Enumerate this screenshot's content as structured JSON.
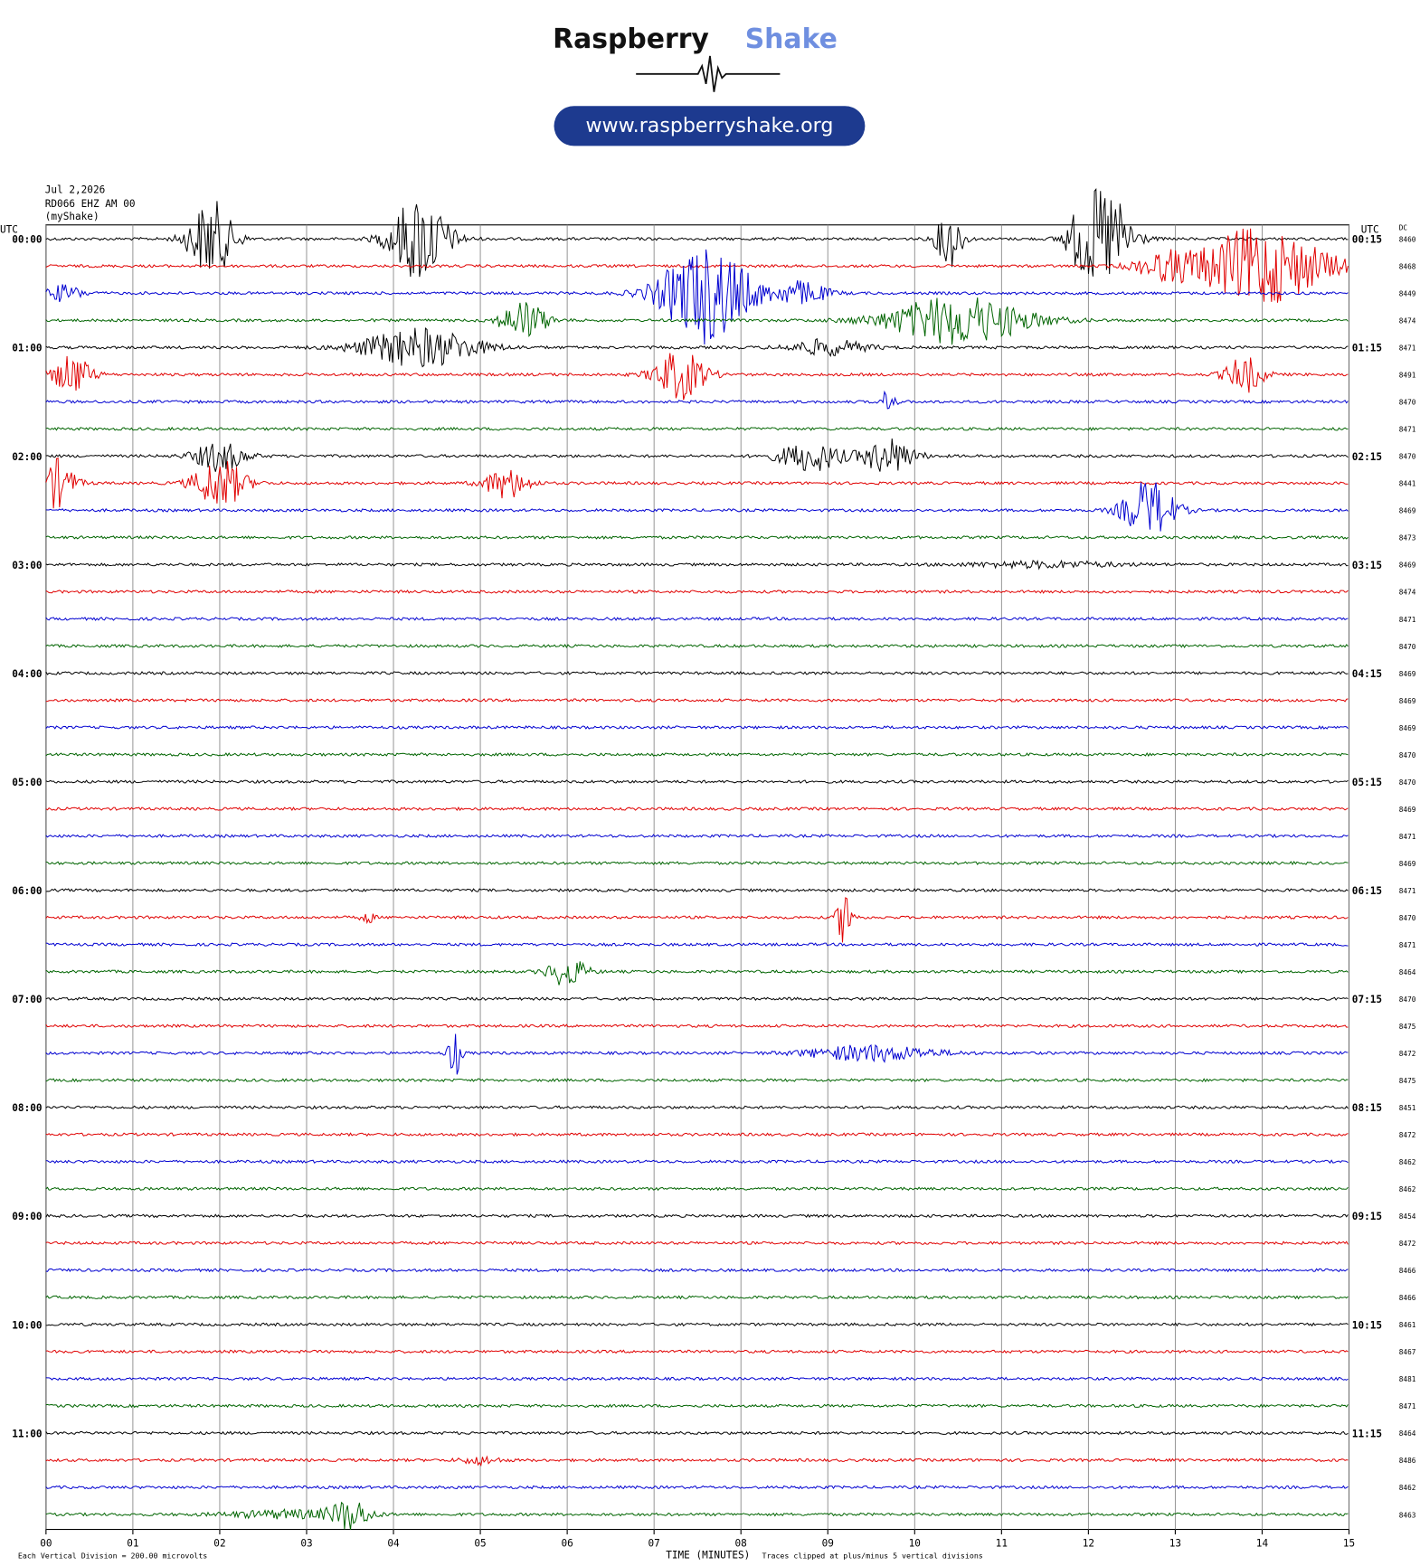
{
  "header": {
    "logo_word1": "Raspberry",
    "logo_word2": "Shake",
    "url": "www.raspberryshake.org",
    "date": "Jul 2,2026",
    "station": "RD066 EHZ AM 00",
    "source": "(myShake)"
  },
  "helicorder": {
    "utc_left": "UTC",
    "utc_right": "UTC",
    "dc_label": "DC",
    "colors": [
      "#000000",
      "#e00000",
      "#0000d0",
      "#006400"
    ],
    "hour_labels": [
      {
        "left": "00:00",
        "right": "00:15"
      },
      {
        "left": "01:00",
        "right": "01:15"
      },
      {
        "left": "02:00",
        "right": "02:15"
      },
      {
        "left": "03:00",
        "right": "03:15"
      },
      {
        "left": "04:00",
        "right": "04:15"
      },
      {
        "left": "05:00",
        "right": "05:15"
      },
      {
        "left": "06:00",
        "right": "06:15"
      },
      {
        "left": "07:00",
        "right": "07:15"
      },
      {
        "left": "08:00",
        "right": "08:15"
      },
      {
        "left": "09:00",
        "right": "09:15"
      },
      {
        "left": "10:00",
        "right": "10:15"
      },
      {
        "left": "11:00",
        "right": "11:15"
      }
    ],
    "dc": [
      8460,
      8468,
      8449,
      8474,
      8471,
      8491,
      8470,
      8471,
      8470,
      8441,
      8469,
      8473,
      8469,
      8474,
      8471,
      8470,
      8469,
      8469,
      8469,
      8470,
      8470,
      8469,
      8471,
      8469,
      8471,
      8470,
      8471,
      8464,
      8470,
      8475,
      8472,
      8475,
      8451,
      8472,
      8462,
      8462,
      8454,
      8472,
      8466,
      8466,
      8461,
      8467,
      8481,
      8471,
      8464,
      8486,
      8462,
      8463
    ],
    "x_ticks": [
      "00",
      "01",
      "02",
      "03",
      "04",
      "05",
      "06",
      "07",
      "08",
      "09",
      "10",
      "11",
      "12",
      "13",
      "14",
      "15"
    ],
    "x_label": "TIME (MINUTES)",
    "scale_note": "Each Vertical Division =  200.00 microvolts",
    "clip_note": "Traces clipped at plus/minus 5 vertical divisions"
  }
}
